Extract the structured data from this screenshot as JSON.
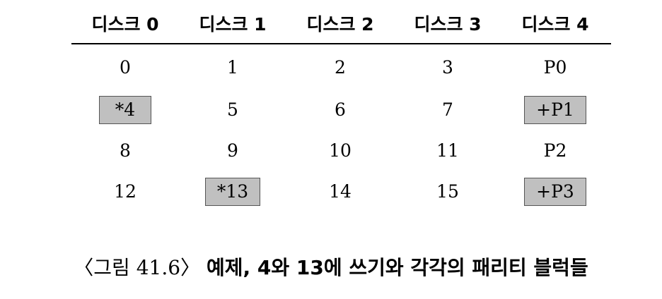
{
  "table": {
    "headers": [
      "디스크 0",
      "디스크 1",
      "디스크 2",
      "디스크 3",
      "디스크 4"
    ],
    "rows": [
      [
        {
          "text": "0",
          "highlight": false
        },
        {
          "text": "1",
          "highlight": false
        },
        {
          "text": "2",
          "highlight": false
        },
        {
          "text": "3",
          "highlight": false
        },
        {
          "text": "P0",
          "highlight": false
        }
      ],
      [
        {
          "text": "*4",
          "highlight": true
        },
        {
          "text": "5",
          "highlight": false
        },
        {
          "text": "6",
          "highlight": false
        },
        {
          "text": "7",
          "highlight": false
        },
        {
          "text": "+P1",
          "highlight": true
        }
      ],
      [
        {
          "text": "8",
          "highlight": false
        },
        {
          "text": "9",
          "highlight": false
        },
        {
          "text": "10",
          "highlight": false
        },
        {
          "text": "11",
          "highlight": false
        },
        {
          "text": "P2",
          "highlight": false
        }
      ],
      [
        {
          "text": "12",
          "highlight": false
        },
        {
          "text": "*13",
          "highlight": true
        },
        {
          "text": "14",
          "highlight": false
        },
        {
          "text": "15",
          "highlight": false
        },
        {
          "text": "+P3",
          "highlight": true
        }
      ]
    ],
    "highlight_color": "#c0c0c0"
  },
  "caption": {
    "figure_label": "〈그림 41.6〉",
    "text": "예제, 4와 13에 쓰기와 각각의 패리티 블럭들"
  }
}
